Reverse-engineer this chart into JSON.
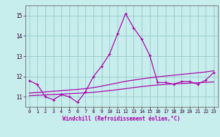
{
  "xlabel": "Windchill (Refroidissement éolien,°C)",
  "background_color": "#c8eded",
  "line_color": "#aa00aa",
  "grid_color": "#99cccc",
  "xlim_min": -0.5,
  "xlim_max": 23.5,
  "ylim_min": 10.5,
  "ylim_max": 15.5,
  "yticks": [
    11,
    12,
    13,
    14,
    15
  ],
  "xticks": [
    0,
    1,
    2,
    3,
    4,
    5,
    6,
    7,
    8,
    9,
    10,
    11,
    12,
    13,
    14,
    15,
    16,
    17,
    18,
    19,
    20,
    21,
    22,
    23
  ],
  "hours": [
    0,
    1,
    2,
    3,
    4,
    5,
    6,
    7,
    8,
    9,
    10,
    11,
    12,
    13,
    14,
    15,
    16,
    17,
    18,
    19,
    20,
    21,
    22,
    23
  ],
  "temp_main": [
    11.8,
    11.6,
    11.0,
    10.85,
    11.1,
    11.0,
    10.72,
    11.25,
    12.0,
    12.5,
    13.1,
    14.1,
    15.1,
    14.4,
    13.85,
    13.05,
    11.7,
    11.7,
    11.62,
    11.75,
    11.75,
    11.62,
    11.82,
    12.2
  ],
  "temp_low": [
    11.05,
    11.07,
    11.09,
    11.11,
    11.13,
    11.15,
    11.17,
    11.19,
    11.22,
    11.26,
    11.3,
    11.35,
    11.4,
    11.45,
    11.5,
    11.54,
    11.58,
    11.61,
    11.63,
    11.65,
    11.67,
    11.69,
    11.71,
    11.73
  ],
  "temp_high": [
    11.18,
    11.21,
    11.24,
    11.27,
    11.3,
    11.33,
    11.36,
    11.4,
    11.45,
    11.52,
    11.6,
    11.68,
    11.76,
    11.82,
    11.88,
    11.93,
    11.98,
    12.02,
    12.06,
    12.1,
    12.14,
    12.18,
    12.22,
    12.28
  ]
}
